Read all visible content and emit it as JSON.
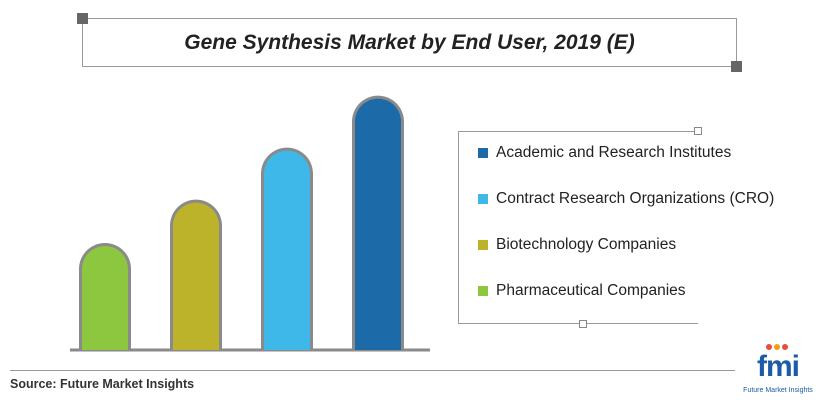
{
  "title": "Gene Synthesis Market by End User, 2019 (E)",
  "source": "Source: Future Market Insights",
  "logo": {
    "word": "fmi",
    "subtitle": "Future Market Insights"
  },
  "chart_data": {
    "type": "bar",
    "title": "Gene Synthesis Market by End User, 2019 (E)",
    "categories": [
      "Pharmaceutical Companies",
      "Biotechnology Companies",
      "Contract Research Organizations (CRO)",
      "Academic and Research Institutes"
    ],
    "values": [
      24,
      34,
      46,
      58
    ],
    "colors": [
      "#8dc63f",
      "#bdb32a",
      "#3db8e8",
      "#1c6aa8"
    ],
    "ylim": [
      0,
      60
    ],
    "grid": false,
    "legend_position": "right",
    "legend": [
      {
        "label": "Academic and Research Institutes",
        "color": "#1c6aa8"
      },
      {
        "label": "Contract Research Organizations (CRO)",
        "color": "#3db8e8"
      },
      {
        "label": "Biotechnology Companies",
        "color": "#bdb32a"
      },
      {
        "label": "Pharmaceutical Companies",
        "color": "#8dc63f"
      }
    ]
  }
}
